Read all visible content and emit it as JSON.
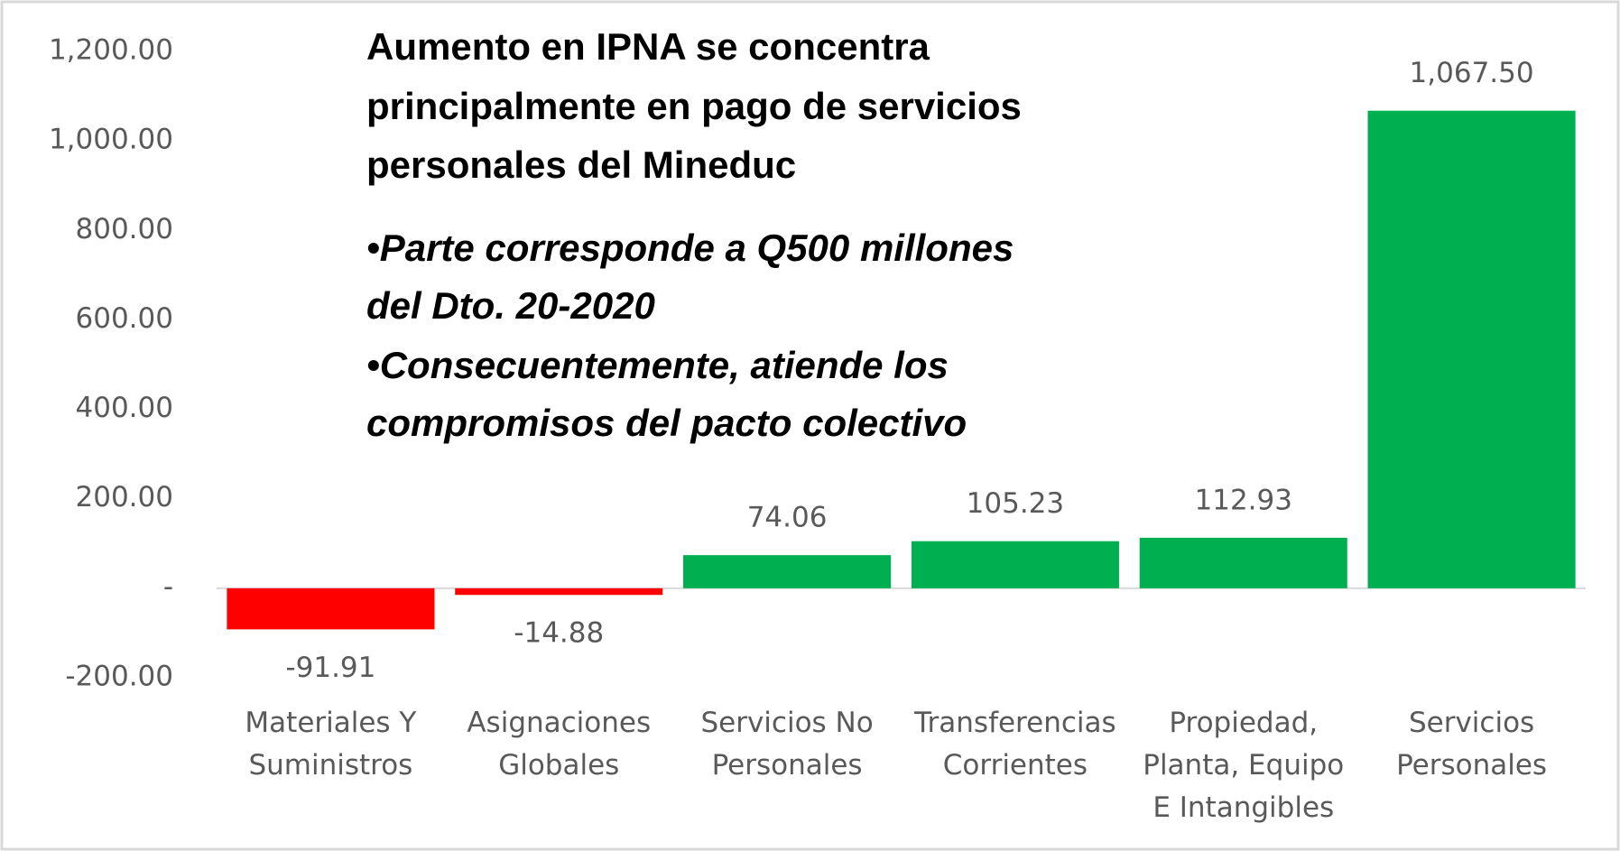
{
  "chart_data": {
    "type": "bar",
    "annotation": {
      "title_lines": [
        "Aumento en IPNA se concentra",
        "principalmente en pago de servicios",
        "personales del Mineduc"
      ],
      "bullet_lines": [
        "•Parte corresponde a Q500 millones",
        "del Dto. 20-2020",
        "•Consecuentemente, atiende los",
        "compromisos del pacto colectivo"
      ]
    },
    "categories": [
      "Materiales Y Suministros",
      "Asignaciones Globales",
      "Servicios No Personales",
      "Transferencias Corrientes",
      "Propiedad, Planta, Equipo E Intangibles",
      "Servicios Personales"
    ],
    "values": [
      -91.91,
      -14.88,
      74.06,
      105.23,
      112.93,
      1067.5
    ],
    "value_labels": [
      "-91.91",
      "-14.88",
      "74.06",
      "105.23",
      "112.93",
      "1,067.50"
    ],
    "colors": [
      "#ff0000",
      "#ff0000",
      "#00b050",
      "#00b050",
      "#00b050",
      "#00b050"
    ],
    "ylim": [
      -200,
      1200
    ],
    "yticks": [
      {
        "value": -200,
        "label": "-200.00"
      },
      {
        "value": 0,
        "label": "-"
      },
      {
        "value": 200,
        "label": "200.00"
      },
      {
        "value": 400,
        "label": "400.00"
      },
      {
        "value": 600,
        "label": "600.00"
      },
      {
        "value": 800,
        "label": "800.00"
      },
      {
        "value": 1000,
        "label": "1,000.00"
      },
      {
        "value": 1200,
        "label": "1,200.00"
      }
    ],
    "grid": false
  }
}
